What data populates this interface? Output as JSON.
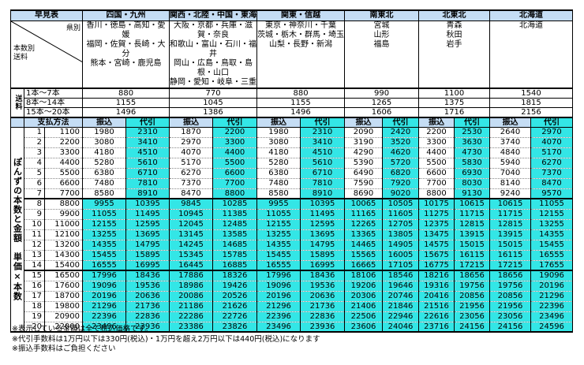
{
  "header": {
    "title": "早見表",
    "regions": [
      "四国・九州",
      "関西・北陸・中国・東海",
      "関東・信越",
      "南東北",
      "北東北",
      "北海道"
    ],
    "pref_label": "県別",
    "qty_label": "本数別",
    "ship_label": "送料",
    "prefectures": [
      [
        "香川・徳島・高知・愛媛",
        "福岡・佐賀・長崎・大分",
        "熊本・宮崎・鹿児島"
      ],
      [
        "大阪・京都・兵庫・滋賀・奈良",
        "和歌山・富山・石川・福井",
        "岡山・広島・鳥取・島根・山口",
        "静岡・愛知・岐阜・三重"
      ],
      [
        "東京・神奈川・千葉",
        "茨城・栃木・群馬・埼玉",
        "山梨・長野・新潟"
      ],
      [
        "宮城",
        "山形",
        "福島"
      ],
      [
        "青森",
        "秋田",
        "岩手"
      ],
      [
        "北海道"
      ]
    ]
  },
  "shipping": {
    "side_label": "送料",
    "rows": [
      {
        "label": "1本～7本",
        "values": [
          "880",
          "770",
          "880",
          "990",
          "1100",
          "1540"
        ]
      },
      {
        "label": "8本～14本",
        "values": [
          "1155",
          "1045",
          "1155",
          "1265",
          "1375",
          "1815"
        ]
      },
      {
        "label": "15本～20本",
        "values": [
          "1496",
          "1386",
          "1496",
          "1606",
          "1716",
          "2156"
        ]
      }
    ]
  },
  "payment": {
    "label": "支払方法",
    "furikomi": "振込",
    "daibiki": "代引"
  },
  "side_label": "ぽんずの本数と金額　単価×本数",
  "rows": [
    {
      "n": "1",
      "unit": "1100",
      "v": [
        "1980",
        "2310",
        "1870",
        "2200",
        "1980",
        "2310",
        "2090",
        "2420",
        "2200",
        "2530",
        "2640",
        "2970"
      ]
    },
    {
      "n": "2",
      "unit": "2200",
      "v": [
        "3080",
        "3410",
        "2970",
        "3300",
        "3080",
        "3410",
        "3190",
        "3520",
        "3300",
        "3630",
        "3740",
        "4070"
      ]
    },
    {
      "n": "3",
      "unit": "3300",
      "v": [
        "4180",
        "4510",
        "4070",
        "4400",
        "4180",
        "4510",
        "4290",
        "4620",
        "4400",
        "4730",
        "4840",
        "5170"
      ]
    },
    {
      "n": "4",
      "unit": "4400",
      "v": [
        "5280",
        "5610",
        "5170",
        "5500",
        "5280",
        "5610",
        "5390",
        "5720",
        "5500",
        "5830",
        "5940",
        "6270"
      ]
    },
    {
      "n": "5",
      "unit": "5500",
      "v": [
        "6380",
        "6710",
        "6270",
        "6600",
        "6380",
        "6710",
        "6490",
        "6820",
        "6600",
        "6930",
        "7040",
        "7370"
      ]
    },
    {
      "n": "6",
      "unit": "6600",
      "v": [
        "7480",
        "7810",
        "7370",
        "7700",
        "7480",
        "7810",
        "7590",
        "7920",
        "7700",
        "8030",
        "8140",
        "8470"
      ]
    },
    {
      "n": "7",
      "unit": "7700",
      "v": [
        "8580",
        "8910",
        "8470",
        "8800",
        "8580",
        "8910",
        "8690",
        "9020",
        "8800",
        "9130",
        "9240",
        "9570"
      ]
    },
    {
      "n": "8",
      "unit": "8800",
      "v": [
        "9955",
        "10395",
        "9845",
        "10285",
        "9955",
        "10395",
        "10065",
        "10505",
        "10175",
        "10615",
        "10615",
        "11055"
      ]
    },
    {
      "n": "9",
      "unit": "9900",
      "v": [
        "11055",
        "11495",
        "10945",
        "11385",
        "11055",
        "11495",
        "11165",
        "11605",
        "11275",
        "11715",
        "11715",
        "12155"
      ]
    },
    {
      "n": "10",
      "unit": "11000",
      "v": [
        "12155",
        "12595",
        "12045",
        "12485",
        "12155",
        "12595",
        "12265",
        "12705",
        "12375",
        "12815",
        "12815",
        "13255"
      ]
    },
    {
      "n": "11",
      "unit": "12100",
      "v": [
        "13255",
        "13695",
        "13145",
        "13585",
        "13255",
        "13695",
        "13365",
        "13805",
        "13475",
        "13915",
        "13915",
        "14355"
      ]
    },
    {
      "n": "12",
      "unit": "13200",
      "v": [
        "14355",
        "14795",
        "14245",
        "14685",
        "14355",
        "14795",
        "14465",
        "14905",
        "14575",
        "15015",
        "15015",
        "15455"
      ]
    },
    {
      "n": "13",
      "unit": "14300",
      "v": [
        "15455",
        "15895",
        "15345",
        "15785",
        "15455",
        "15895",
        "15565",
        "16005",
        "15675",
        "16115",
        "16115",
        "16555"
      ]
    },
    {
      "n": "14",
      "unit": "15400",
      "v": [
        "16555",
        "16995",
        "16445",
        "16885",
        "16555",
        "16995",
        "16665",
        "17105",
        "16775",
        "17215",
        "17215",
        "17655"
      ]
    },
    {
      "n": "15",
      "unit": "16500",
      "v": [
        "17996",
        "18436",
        "17886",
        "18326",
        "17996",
        "18436",
        "18106",
        "18546",
        "18216",
        "18656",
        "18656",
        "19096"
      ]
    },
    {
      "n": "16",
      "unit": "17600",
      "v": [
        "19096",
        "19536",
        "18986",
        "19426",
        "19096",
        "19536",
        "19206",
        "19646",
        "19316",
        "19756",
        "19756",
        "20196"
      ]
    },
    {
      "n": "17",
      "unit": "18700",
      "v": [
        "20196",
        "20636",
        "20086",
        "20526",
        "20196",
        "20636",
        "20306",
        "20746",
        "20416",
        "20856",
        "20856",
        "21296"
      ]
    },
    {
      "n": "18",
      "unit": "19800",
      "v": [
        "21296",
        "21736",
        "21186",
        "21626",
        "21296",
        "21736",
        "21406",
        "21846",
        "21516",
        "21956",
        "21956",
        "22396"
      ]
    },
    {
      "n": "19",
      "unit": "20900",
      "v": [
        "22396",
        "22836",
        "22286",
        "22726",
        "22396",
        "22836",
        "22506",
        "22946",
        "22616",
        "23056",
        "23056",
        "23496"
      ]
    },
    {
      "n": "20",
      "unit": "22000",
      "v": [
        "23496",
        "23936",
        "23386",
        "23826",
        "23496",
        "23936",
        "23606",
        "24046",
        "23716",
        "24156",
        "24156",
        "24596"
      ]
    }
  ],
  "notes": [
    "※表示している金額は全て税込価格です。",
    "※代引手数料は1万円以下は330円(税込)・1万円を超え2万円以下は440円(税込)になります",
    "※振込手数料はご負担ください"
  ]
}
